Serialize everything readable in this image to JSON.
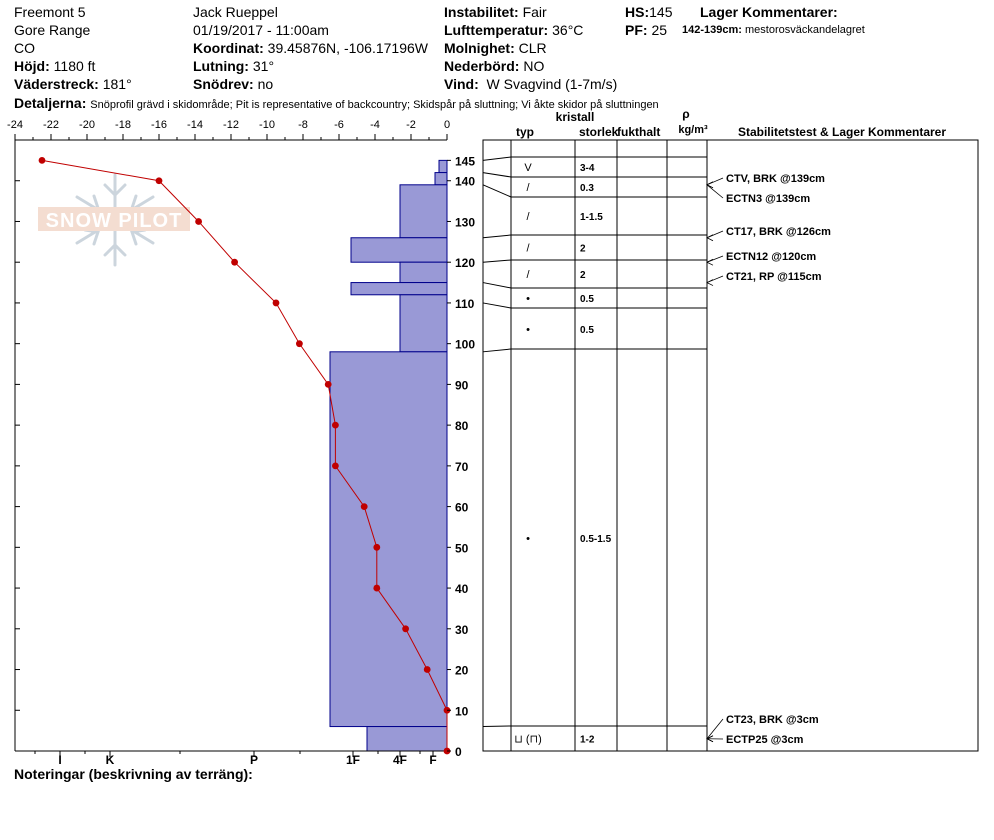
{
  "header": {
    "location": "Freemont 5",
    "range": "Gore Range",
    "state": "CO",
    "elevation_label": "Höjd:",
    "elevation": "1180 ft",
    "aspect_label": "Väderstreck:",
    "aspect": "181°",
    "observer": "Jack Rueppel",
    "datetime": "01/19/2017 - 11:00am",
    "coord_label": "Koordinat:",
    "coordinates": "39.45876N, -106.17196W",
    "slope_label": "Lutning:",
    "slope": "31°",
    "wind_loading_label": "Snödrev:",
    "wind_loading": "no",
    "instability_label": "Instabilitet:",
    "instability": "Fair",
    "air_temp_label": "Lufttemperatur:",
    "air_temp": "36°C",
    "sky_label": "Molnighet:",
    "sky": "CLR",
    "precip_label": "Nederbörd:",
    "precip": "NO",
    "wind_label": "Vind:",
    "wind": "W Svagvind (1-7m/s)",
    "hs_label": "HS:",
    "hs": "145",
    "pf_label": "PF:",
    "pf": "25",
    "layer_comments_label": "Lager Kommentarer:",
    "layer_comment_range": "142-139cm:",
    "layer_comment_text": "mestorosväckandelagret",
    "details_label": "Detaljerna:",
    "details_text": "Snöprofil grävd i skidområde;  Pit is representative of backcountry;  Skidspår på sluttning;  Vi åkte skidor på sluttningen",
    "notes_label": "Noteringar (beskrivning av terräng):"
  },
  "table_headers": {
    "crystal": "kristall",
    "type": "typ",
    "size": "storlek",
    "moisture": "fukthalt",
    "rho": "ρ",
    "density_unit": "kg/m³",
    "stability": "Stabilitetstest & Lager Kommentarer"
  },
  "logo_text": "SNOW PILOT",
  "chart_data": {
    "type": "line",
    "xlabel": "",
    "ylabel": "",
    "x_ticks": [
      "-24",
      "-22",
      "-20",
      "-18",
      "-16",
      "-14",
      "-12",
      "-10",
      "-8",
      "-6",
      "-4",
      "-2",
      "0"
    ],
    "xlim": [
      -24,
      0
    ],
    "ylim": [
      0,
      150
    ],
    "y_ticks": [
      0,
      10,
      20,
      30,
      40,
      50,
      60,
      70,
      80,
      90,
      100,
      110,
      120,
      130,
      140,
      145
    ],
    "temperature_profile": {
      "x": [
        -22.5,
        -16,
        -13.8,
        -11.8,
        -9.5,
        -8.2,
        -6.6,
        -6.2,
        -6.2,
        -4.6,
        -3.9,
        -3.9,
        -2.3,
        -1.1,
        0,
        0
      ],
      "y": [
        145,
        140,
        130,
        120,
        110,
        100,
        90,
        80,
        70,
        60,
        50,
        40,
        30,
        20,
        10,
        0
      ]
    },
    "hardness_labels": [
      "I",
      "K",
      "P",
      "1F",
      "4F",
      "F"
    ],
    "hardness_layers": [
      {
        "top": 145,
        "bottom": 142,
        "hardness": "F"
      },
      {
        "top": 142,
        "bottom": 139,
        "hardness": "F"
      },
      {
        "top": 139,
        "bottom": 126,
        "hardness": "4F"
      },
      {
        "top": 126,
        "bottom": 120,
        "hardness": "P"
      },
      {
        "top": 120,
        "bottom": 115,
        "hardness": "4F"
      },
      {
        "top": 115,
        "bottom": 112,
        "hardness": "P"
      },
      {
        "top": 112,
        "bottom": 98,
        "hardness": "4F"
      },
      {
        "top": 98,
        "bottom": 6,
        "hardness": "1F"
      },
      {
        "top": 6,
        "bottom": 0,
        "hardness": "4F-1F"
      }
    ],
    "layers": [
      {
        "top": 145,
        "bottom": 142,
        "type": "V",
        "size": "3-4"
      },
      {
        "top": 142,
        "bottom": 139,
        "type": "/",
        "size": "0.3"
      },
      {
        "top": 139,
        "bottom": 126,
        "type": "/",
        "size": "1-1.5"
      },
      {
        "top": 126,
        "bottom": 120,
        "type": "/",
        "size": "2"
      },
      {
        "top": 120,
        "bottom": 115,
        "type": "/",
        "size": "2"
      },
      {
        "top": 115,
        "bottom": 110,
        "type": "•",
        "size": "0.5"
      },
      {
        "top": 110,
        "bottom": 98,
        "type": "•",
        "size": "0.5"
      },
      {
        "top": 98,
        "bottom": 6,
        "type": "•",
        "size": "0.5-1.5"
      },
      {
        "top": 6,
        "bottom": 0,
        "type": "⊔ (⊓)",
        "size": "1-2"
      }
    ],
    "stability_tests": [
      {
        "label": "CTV, BRK @139cm",
        "depth": 139
      },
      {
        "label": "ECTN3 @139cm",
        "depth": 139
      },
      {
        "label": "CT17, BRK @126cm",
        "depth": 126
      },
      {
        "label": "ECTN12 @120cm",
        "depth": 120
      },
      {
        "label": "CT21, RP @115cm",
        "depth": 115
      },
      {
        "label": "CT23, BRK @3cm",
        "depth": 3
      },
      {
        "label": "ECTP25 @3cm",
        "depth": 3
      }
    ]
  }
}
